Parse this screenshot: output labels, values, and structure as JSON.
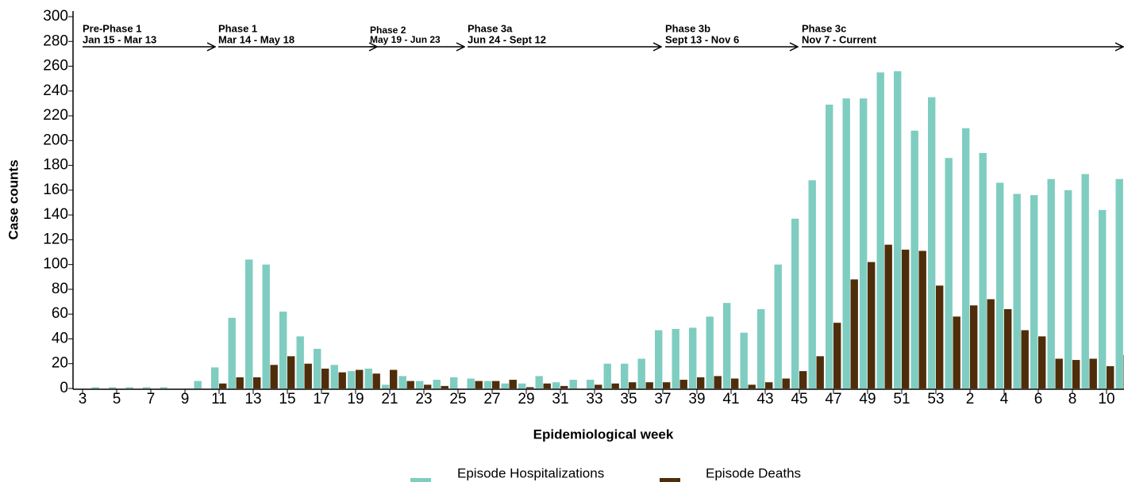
{
  "chart_data": {
    "type": "bar",
    "xlabel": "Epidemiological week",
    "ylabel": "Case counts",
    "categories": [
      "3",
      null,
      "5",
      null,
      "7",
      null,
      "9",
      null,
      "11",
      null,
      "13",
      null,
      "15",
      null,
      "17",
      null,
      "19",
      null,
      "21",
      null,
      "23",
      null,
      "25",
      null,
      "27",
      null,
      "29",
      null,
      "31",
      null,
      "33",
      null,
      "35",
      null,
      "37",
      null,
      "39",
      null,
      "41",
      null,
      "43",
      null,
      "45",
      null,
      "47",
      null,
      "49",
      null,
      "51",
      null,
      "53",
      null,
      "2",
      null,
      "4",
      null,
      "6",
      null,
      "8",
      null,
      "10",
      null
    ],
    "series": [
      {
        "name": "Episode Hospitalizations",
        "color": "#7fcdc1",
        "values": [
          0,
          1,
          1,
          1,
          1,
          1,
          0,
          6,
          17,
          57,
          104,
          100,
          62,
          42,
          32,
          19,
          14,
          16,
          3,
          10,
          6,
          7,
          9,
          8,
          6,
          4,
          4,
          10,
          5,
          7,
          7,
          20,
          20,
          24,
          47,
          48,
          49,
          58,
          69,
          45,
          64,
          100,
          137,
          168,
          229,
          234,
          234,
          255,
          256,
          208,
          235,
          186,
          210,
          190,
          166,
          157,
          156,
          169,
          160,
          173,
          144,
          169
        ]
      },
      {
        "name": "Episode Deaths",
        "color": "#4f2d0a",
        "values": [
          0,
          0,
          0,
          0,
          0,
          0,
          0,
          0,
          4,
          9,
          9,
          19,
          26,
          20,
          16,
          13,
          15,
          12,
          15,
          6,
          3,
          2,
          0,
          6,
          6,
          7,
          1,
          4,
          2,
          0,
          3,
          4,
          5,
          5,
          5,
          7,
          9,
          10,
          8,
          3,
          5,
          8,
          14,
          26,
          53,
          88,
          102,
          116,
          112,
          111,
          83,
          58,
          67,
          72,
          64,
          47,
          42,
          24,
          23,
          24,
          18,
          27
        ]
      }
    ],
    "phases": [
      {
        "name": "Pre-Phase 1",
        "dates": "Jan 15 - Mar 13"
      },
      {
        "name": "Phase 1",
        "dates": "Mar 14 - May 18"
      },
      {
        "name": "Phase 2",
        "dates": "May 19 - Jun 23"
      },
      {
        "name": "Phase 3a",
        "dates": "Jun 24 - Sept 12"
      },
      {
        "name": "Phase 3b",
        "dates": "Sept 13 - Nov 6"
      },
      {
        "name": "Phase 3c",
        "dates": "Nov 7 - Current"
      }
    ],
    "ylim": [
      0,
      300
    ],
    "yticks": [
      0,
      20,
      40,
      60,
      80,
      100,
      120,
      140,
      160,
      180,
      200,
      220,
      240,
      260,
      280,
      300
    ]
  }
}
